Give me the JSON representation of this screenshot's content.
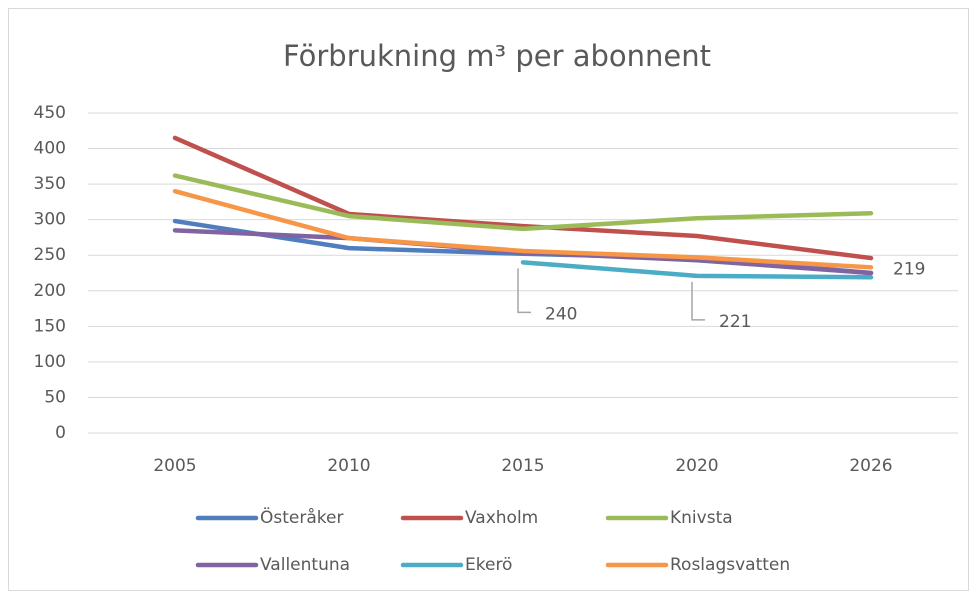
{
  "chart_data": {
    "type": "line",
    "title": "Förbrukning m³ per abonnent",
    "categories": [
      "2005",
      "2010",
      "2015",
      "2020",
      "2026"
    ],
    "series": [
      {
        "name": "Österåker",
        "color": "#4f7dbe",
        "values": [
          298,
          260,
          252,
          246,
          225
        ]
      },
      {
        "name": "Vaxholm",
        "color": "#c0504d",
        "values": [
          415,
          308,
          291,
          277,
          246
        ]
      },
      {
        "name": "Knivsta",
        "color": "#9bbb59",
        "values": [
          362,
          305,
          287,
          302,
          309
        ]
      },
      {
        "name": "Vallentuna",
        "color": "#8064a2",
        "values": [
          285,
          274,
          254,
          243,
          225
        ]
      },
      {
        "name": "Ekerö",
        "color": "#4bacc6",
        "values": [
          null,
          null,
          240,
          221,
          219
        ]
      },
      {
        "name": "Roslagsvatten",
        "color": "#f79646",
        "values": [
          340,
          274,
          256,
          247,
          233
        ]
      }
    ],
    "ylim": [
      0,
      450
    ],
    "yticks": [
      0,
      50,
      100,
      150,
      200,
      250,
      300,
      350,
      400,
      450
    ],
    "grid": true
  }
}
